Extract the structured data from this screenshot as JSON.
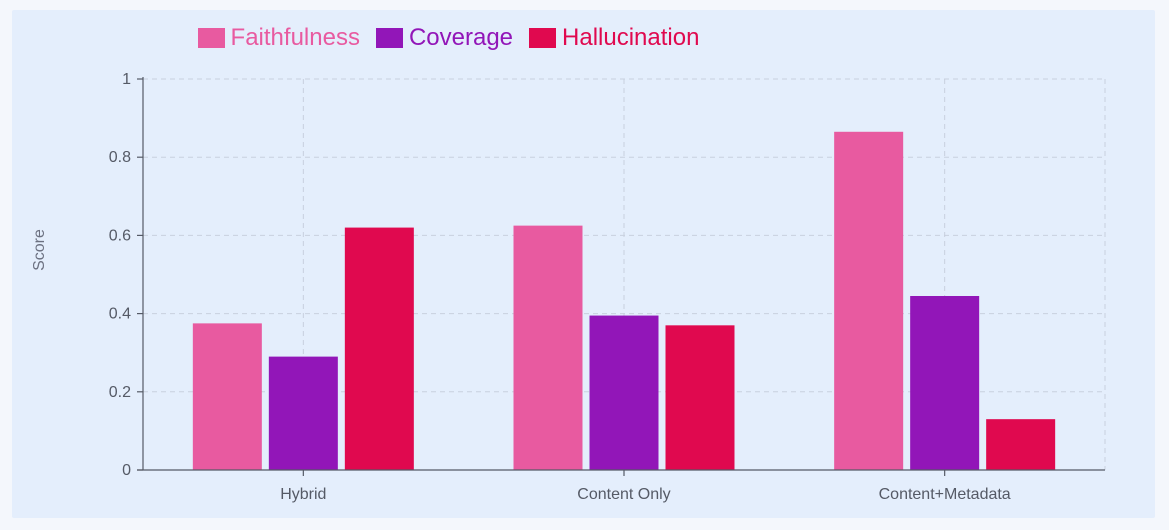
{
  "chart_data": {
    "type": "bar",
    "categories": [
      "Hybrid",
      "Content Only",
      "Content+Metadata"
    ],
    "series": [
      {
        "name": "Faithfulness",
        "color": "#e85aa0",
        "values": [
          0.375,
          0.625,
          0.865
        ]
      },
      {
        "name": "Coverage",
        "color": "#9216b8",
        "values": [
          0.29,
          0.395,
          0.445
        ]
      },
      {
        "name": "Hallucination",
        "color": "#e0094f",
        "values": [
          0.62,
          0.37,
          0.13
        ]
      }
    ],
    "title": "",
    "xlabel": "",
    "ylabel": "Score",
    "ylim": [
      0,
      1
    ],
    "yticks": [
      0,
      0.2,
      0.4,
      0.6,
      0.8,
      1
    ],
    "ytick_labels": [
      "0",
      "0.2",
      "0.4",
      "0.6",
      "0.8",
      "1"
    ],
    "grid": true,
    "legend_position": "top-center"
  }
}
